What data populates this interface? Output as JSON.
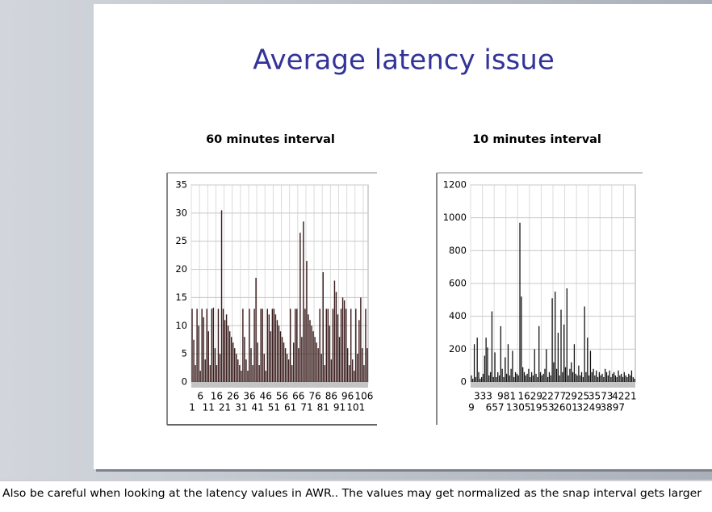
{
  "slide": {
    "title": "Average latency issue"
  },
  "notes": "Also be careful when looking at the latency values in AWR.. The values may get normalized as the snap interval gets larger",
  "chart_data": [
    {
      "type": "bar",
      "title": "60 minutes interval",
      "color": "#3a1c1c",
      "grid": true,
      "ylim": [
        0,
        35
      ],
      "yticks": [
        0,
        5,
        10,
        15,
        20,
        25,
        30,
        35
      ],
      "categories": [
        1,
        null,
        null,
        null,
        null,
        6,
        null,
        null,
        null,
        null,
        11,
        null,
        null,
        null,
        null,
        16,
        null,
        null,
        null,
        null,
        21,
        null,
        null,
        null,
        null,
        26,
        null,
        null,
        null,
        null,
        31,
        null,
        null,
        null,
        null,
        36,
        null,
        null,
        null,
        null,
        41,
        null,
        null,
        null,
        null,
        46,
        null,
        null,
        null,
        null,
        51,
        null,
        null,
        null,
        null,
        56,
        null,
        null,
        null,
        null,
        61,
        null,
        null,
        null,
        null,
        66,
        null,
        null,
        null,
        null,
        71,
        null,
        null,
        null,
        null,
        76,
        null,
        null,
        null,
        null,
        81,
        null,
        null,
        null,
        null,
        86,
        null,
        null,
        null,
        null,
        91,
        null,
        null,
        null,
        null,
        96,
        null,
        null,
        null,
        null,
        101,
        null,
        null,
        null,
        null,
        106,
        null,
        null
      ],
      "values": [
        13,
        7.5,
        3,
        13,
        10,
        2,
        13,
        11.5,
        4,
        13,
        9,
        3,
        13,
        13.2,
        6,
        3,
        13,
        5,
        30.5,
        13,
        11,
        12,
        10,
        9,
        8,
        7,
        6,
        5,
        4,
        3,
        2,
        13,
        8,
        4,
        2,
        13,
        6,
        3,
        13,
        18.5,
        7,
        3,
        13,
        13,
        5,
        2,
        13,
        12,
        9,
        13,
        13,
        12,
        11,
        10,
        9,
        8,
        7,
        6,
        5,
        4,
        13,
        3,
        7,
        13,
        13,
        6,
        26.5,
        8,
        28.5,
        13,
        21.5,
        12,
        11,
        10,
        9,
        8,
        7,
        6,
        13,
        5,
        19.5,
        3,
        13,
        13,
        10,
        4,
        13,
        18,
        16,
        12,
        8,
        13,
        15,
        14.5,
        13,
        6,
        3,
        13,
        4,
        2,
        13,
        5,
        11,
        15,
        6,
        3,
        13,
        6
      ]
    },
    {
      "type": "bar",
      "title": "10 minutes interval",
      "color": "#111111",
      "grid": true,
      "ylim": [
        0,
        1200
      ],
      "yticks": [
        0,
        200,
        400,
        600,
        800,
        1000,
        1200
      ],
      "categories": [
        9,
        null,
        null,
        null,
        null,
        null,
        null,
        null,
        333,
        null,
        null,
        null,
        null,
        null,
        null,
        null,
        657,
        null,
        null,
        null,
        null,
        null,
        null,
        null,
        981,
        null,
        null,
        null,
        null,
        null,
        null,
        null,
        1305,
        null,
        null,
        null,
        null,
        null,
        null,
        null,
        1629,
        null,
        null,
        null,
        null,
        null,
        null,
        null,
        1953,
        null,
        null,
        null,
        null,
        null,
        null,
        null,
        2277,
        null,
        null,
        null,
        null,
        null,
        null,
        null,
        2601,
        null,
        null,
        null,
        null,
        null,
        null,
        null,
        2925,
        null,
        null,
        null,
        null,
        null,
        null,
        null,
        3249,
        null,
        null,
        null,
        null,
        null,
        null,
        null,
        3573,
        null,
        null,
        null,
        null,
        null,
        null,
        null,
        3897,
        null,
        null,
        null,
        null,
        null,
        null,
        null,
        4221,
        null,
        null,
        null,
        null,
        null,
        null,
        null
      ],
      "values": [
        40,
        20,
        230,
        30,
        270,
        60,
        20,
        30,
        50,
        160,
        270,
        210,
        40,
        60,
        430,
        30,
        180,
        30,
        60,
        40,
        340,
        80,
        30,
        150,
        50,
        230,
        40,
        80,
        190,
        30,
        60,
        50,
        40,
        970,
        520,
        90,
        60,
        40,
        50,
        80,
        30,
        60,
        40,
        200,
        50,
        30,
        340,
        60,
        40,
        50,
        80,
        200,
        30,
        60,
        40,
        510,
        120,
        550,
        80,
        300,
        40,
        440,
        60,
        350,
        90,
        570,
        40,
        80,
        120,
        60,
        230,
        50,
        40,
        100,
        40,
        60,
        30,
        460,
        60,
        270,
        40,
        190,
        60,
        80,
        40,
        70,
        30,
        60,
        40,
        50,
        30,
        80,
        60,
        40,
        70,
        30,
        50,
        60,
        40,
        30,
        70,
        40,
        50,
        30,
        60,
        40,
        30,
        50,
        40,
        70,
        30,
        20
      ]
    }
  ]
}
